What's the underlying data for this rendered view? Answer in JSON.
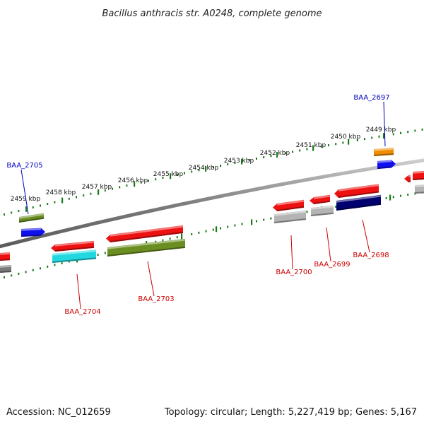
{
  "header": {
    "title": "Bacillus anthracis str. A0248, complete genome"
  },
  "footer": {
    "accession": "Accession: NC_012659",
    "summary": "Topology: circular; Length: 5,227,419 bp; Genes: 5,167"
  },
  "colors": {
    "backbone": "#8c8c8c",
    "tick": "#1a7a1a",
    "label_forward": "#0000c0",
    "label_reverse": "#cc0000",
    "red": "#ee1111",
    "olive": "#6b8e23",
    "blue": "#1010ee",
    "orange": "#f08c00",
    "cyan": "#22d8e0",
    "navy": "#00006e",
    "grey": "#b4b4b4",
    "darkgrey": "#7a7a7a"
  },
  "ticks": [
    {
      "label": "2459 kbp"
    },
    {
      "label": "2458 kbp"
    },
    {
      "label": "2457 kbp"
    },
    {
      "label": "2456 kbp"
    },
    {
      "label": "2455 kbp"
    },
    {
      "label": "2454 kbp"
    },
    {
      "label": "2453 kbp"
    },
    {
      "label": "2452 kbp"
    },
    {
      "label": "2451 kbp"
    },
    {
      "label": "2450 kbp"
    },
    {
      "label": "2449 kbp"
    }
  ],
  "genes": [
    {
      "label": "BAA_2705",
      "strand": "forward"
    },
    {
      "label": "BAA_2697",
      "strand": "forward"
    },
    {
      "label": "BAA_2704",
      "strand": "reverse"
    },
    {
      "label": "BAA_2703",
      "strand": "reverse"
    },
    {
      "label": "BAA_2700",
      "strand": "reverse"
    },
    {
      "label": "BAA_2699",
      "strand": "reverse"
    },
    {
      "label": "BAA_2698",
      "strand": "reverse"
    }
  ]
}
